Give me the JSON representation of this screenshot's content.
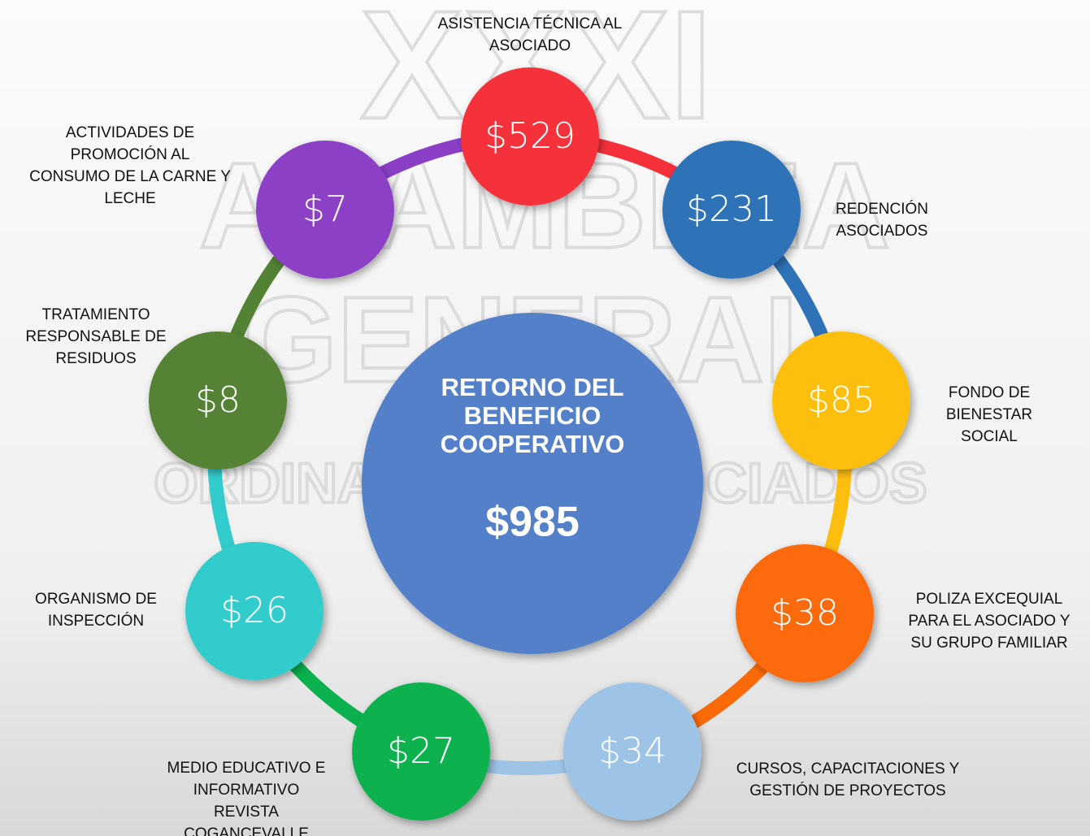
{
  "watermark": [
    "XXXI",
    "ASAMBLEA",
    "GENERAL",
    "ORDINARIA DE ASOCIADOS"
  ],
  "center": {
    "title": [
      "RETORNO DEL",
      "BENEFICIO",
      "COOPERATIVO"
    ],
    "value": "$985"
  },
  "nodes": [
    {
      "value": "$529",
      "color": "#f5303a",
      "label": [
        "ASISTENCIA TÉCNICA AL",
        "ASOCIADO"
      ]
    },
    {
      "value": "$231",
      "color": "#2e72b8",
      "label": [
        "REDENCIÓN",
        "ASOCIADOS"
      ]
    },
    {
      "value": "$85",
      "color": "#fdbf0f",
      "label": [
        "FONDO DE",
        "BIENESTAR",
        "SOCIAL"
      ]
    },
    {
      "value": "$38",
      "color": "#fb6a08",
      "label": [
        "POLIZA EXCEQUIAL",
        "PARA EL ASOCIADO Y",
        "SU GRUPO FAMILIAR"
      ]
    },
    {
      "value": "$34",
      "color": "#9dc3e6",
      "label": [
        "CURSOS, CAPACITACIONES Y",
        "GESTIÓN DE PROYECTOS"
      ]
    },
    {
      "value": "$27",
      "color": "#0ab14e",
      "label": [
        "MEDIO EDUCATIVO E",
        "INFORMATIVO",
        "REVISTA",
        "COGANCEVALLE"
      ]
    },
    {
      "value": "$26",
      "color": "#33cccc",
      "label": [
        "ORGANISMO DE",
        "INSPECCIÓN"
      ]
    },
    {
      "value": "$8",
      "color": "#548235",
      "label": [
        "TRATAMIENTO",
        "RESPONSABLE DE",
        "RESIDUOS"
      ]
    },
    {
      "value": "$7",
      "color": "#8b3fc6",
      "label": [
        "ACTIVIDADES DE",
        "PROMOCIÓN AL",
        "CONSUMO DE LA CARNE Y",
        "LECHE"
      ]
    }
  ]
}
